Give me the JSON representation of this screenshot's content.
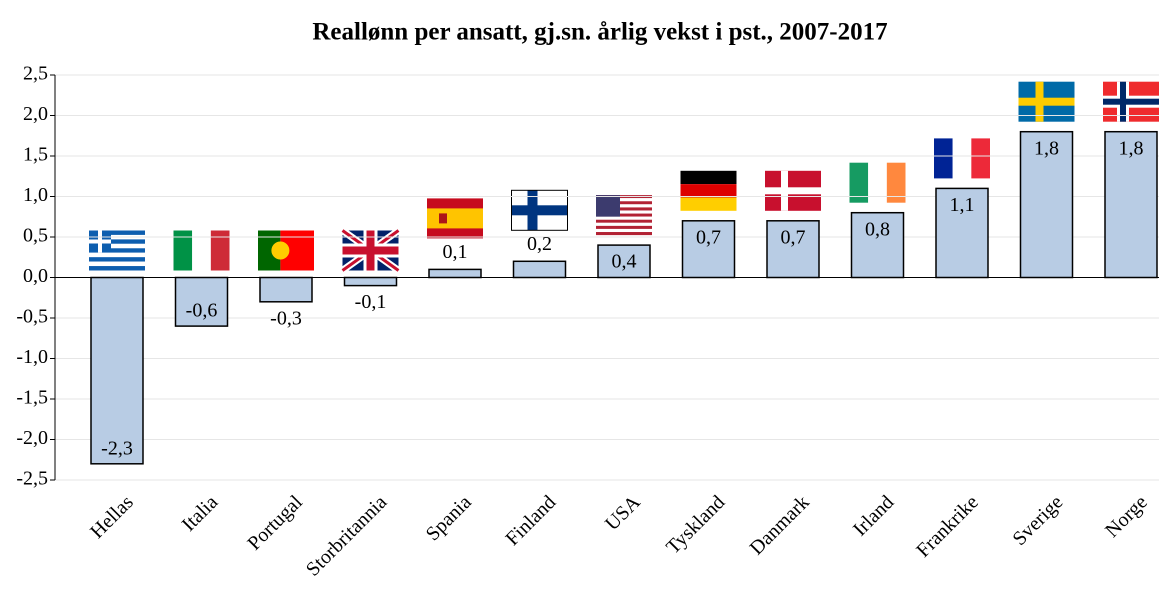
{
  "chart_data": {
    "type": "bar",
    "title": "Reallønn per ansatt, gj.sn. årlig vekst i pst., 2007-2017",
    "categories": [
      "Hellas",
      "Italia",
      "Portugal",
      "Storbritannia",
      "Spania",
      "Finland",
      "USA",
      "Tyskland",
      "Danmark",
      "Irland",
      "Frankrike",
      "Sverige",
      "Norge"
    ],
    "values": [
      -2.3,
      -0.6,
      -0.3,
      -0.1,
      0.1,
      0.2,
      0.4,
      0.7,
      0.7,
      0.8,
      1.1,
      1.8,
      1.8
    ],
    "value_labels": [
      "-2,3",
      "-0,6",
      "-0,3",
      "-0,1",
      "0,1",
      "0,2",
      "0,4",
      "0,7",
      "0,7",
      "0,8",
      "1,1",
      "1,8",
      "1,8"
    ],
    "color": "#b8cce4",
    "ylim": [
      -2.5,
      2.5
    ],
    "yticks": [
      {
        "value": -2.5,
        "label": "-2,5"
      },
      {
        "value": -2,
        "label": "-2,0"
      },
      {
        "value": -1.5,
        "label": "-1,5"
      },
      {
        "value": -1,
        "label": "-1,0"
      },
      {
        "value": -0.5,
        "label": "-0,5"
      },
      {
        "value": 0,
        "label": "0,0"
      },
      {
        "value": 0.5,
        "label": "0,5"
      },
      {
        "value": 1,
        "label": "1,0"
      },
      {
        "value": 1.5,
        "label": "1,5"
      },
      {
        "value": 2,
        "label": "2,0"
      },
      {
        "value": 2.5,
        "label": "2,5"
      }
    ],
    "grid": true
  }
}
